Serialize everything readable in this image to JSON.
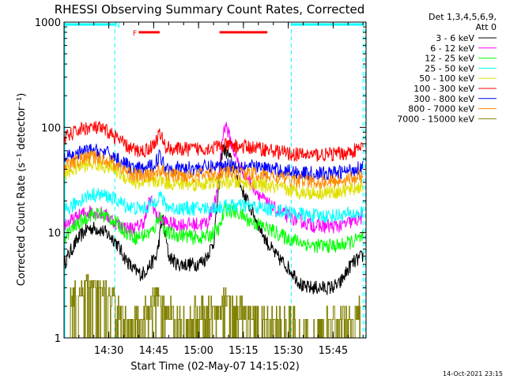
{
  "chart_data": {
    "type": "line",
    "title": "RHESSI Observing Summary Count Rates, Corrected",
    "xlabel": "Start Time (02-May-07 14:15:02)",
    "ylabel": "Corrected Count Rate (s⁻¹ detector⁻¹)",
    "ylim": [
      1,
      1000
    ],
    "yscale": "log",
    "xlim": [
      "14:15:02",
      "15:56:00"
    ],
    "x_ticks": [
      "14:30",
      "14:45",
      "15:00",
      "15:15",
      "15:30",
      "15:45"
    ],
    "y_ticks": [
      "1",
      "10",
      "100",
      "1000"
    ],
    "legend_header": [
      "Det 1,3,4,5,6,9,",
      "Att 0"
    ],
    "legend_position": "top-right",
    "timestamp": "14-Oct-2021 23:15",
    "annotations": [
      {
        "text": "N",
        "x": "14:32",
        "y": 950,
        "color": "#00ffff"
      },
      {
        "text": "F",
        "x": "14:38",
        "y": 800,
        "color": "#ff0000"
      }
    ],
    "night_intervals": [
      [
        "14:15",
        "14:32"
      ],
      [
        "15:31",
        "15:55"
      ]
    ],
    "flare_intervals": [
      [
        "14:40",
        "14:47"
      ],
      [
        "15:07",
        "15:23"
      ]
    ],
    "series": [
      {
        "name": "3 - 6 keV",
        "color": "#000000",
        "x": [
          "14:15",
          "14:17",
          "14:20",
          "14:23",
          "14:26",
          "14:29",
          "14:32",
          "14:35",
          "14:38",
          "14:41",
          "14:44",
          "14:46",
          "14:48",
          "14:50",
          "14:53",
          "14:56",
          "14:59",
          "15:02",
          "15:05",
          "15:07",
          "15:08",
          "15:10",
          "15:12",
          "15:14",
          "15:17",
          "15:20",
          "15:23",
          "15:26",
          "15:29",
          "15:32",
          "15:35",
          "15:38",
          "15:41",
          "15:44",
          "15:47",
          "15:49",
          "15:51",
          "15:53",
          "15:55"
        ],
        "y": [
          5,
          6.5,
          9,
          11,
          11,
          10,
          8.5,
          6,
          4.5,
          4,
          5,
          6,
          14,
          6,
          5,
          5,
          5,
          5.5,
          8,
          30,
          65,
          55,
          40,
          28,
          18,
          12,
          8,
          6,
          5,
          4,
          3,
          3,
          3,
          3,
          3.2,
          4,
          5,
          5.5,
          6
        ]
      },
      {
        "name": "6 - 12 keV",
        "color": "#ff00ff",
        "x": [
          "14:15",
          "14:18",
          "14:21",
          "14:24",
          "14:27",
          "14:30",
          "14:33",
          "14:36",
          "14:39",
          "14:42",
          "14:44",
          "14:46",
          "14:48",
          "14:51",
          "14:54",
          "14:57",
          "15:00",
          "15:03",
          "15:06",
          "15:08",
          "15:09",
          "15:11",
          "15:13",
          "15:16",
          "15:19",
          "15:22",
          "15:25",
          "15:28",
          "15:31",
          "15:34",
          "15:37",
          "15:40",
          "15:43",
          "15:46",
          "15:49",
          "15:52",
          "15:55"
        ],
        "y": [
          12,
          13,
          15,
          16,
          15.5,
          14,
          12,
          11,
          11,
          13,
          22,
          14,
          13,
          12,
          12,
          12,
          12,
          12.5,
          22,
          80,
          110,
          70,
          48,
          34,
          26,
          20,
          17,
          15,
          14,
          13,
          12,
          11.5,
          11.5,
          11.5,
          12,
          13,
          14
        ]
      },
      {
        "name": "12 - 25 keV",
        "color": "#00ff00",
        "x": [
          "14:15",
          "14:18",
          "14:21",
          "14:24",
          "14:27",
          "14:30",
          "14:33",
          "14:36",
          "14:39",
          "14:42",
          "14:45",
          "14:47",
          "14:49",
          "14:52",
          "14:55",
          "14:58",
          "15:01",
          "15:04",
          "15:07",
          "15:09",
          "15:11",
          "15:14",
          "15:17",
          "15:20",
          "15:23",
          "15:26",
          "15:29",
          "15:32",
          "15:35",
          "15:38",
          "15:41",
          "15:44",
          "15:47",
          "15:50",
          "15:53",
          "15:55"
        ],
        "y": [
          9,
          11,
          13,
          15,
          15,
          14,
          12,
          10,
          9,
          9.5,
          10.5,
          15,
          10,
          9.5,
          9.5,
          9,
          9,
          9.5,
          11,
          17,
          16,
          15,
          13,
          12,
          11,
          10,
          9,
          8.5,
          8,
          7.5,
          7.5,
          7.5,
          7.5,
          8,
          8.5,
          9
        ]
      },
      {
        "name": "25 - 50 keV",
        "color": "#00ffff",
        "x": [
          "14:15",
          "14:18",
          "14:21",
          "14:24",
          "14:27",
          "14:30",
          "14:33",
          "14:36",
          "14:39",
          "14:42",
          "14:45",
          "14:47",
          "14:49",
          "14:52",
          "14:55",
          "14:58",
          "15:01",
          "15:04",
          "15:07",
          "15:10",
          "15:13",
          "15:16",
          "15:19",
          "15:22",
          "15:25",
          "15:28",
          "15:31",
          "15:34",
          "15:37",
          "15:40",
          "15:43",
          "15:46",
          "15:49",
          "15:52",
          "15:55"
        ],
        "y": [
          16,
          18,
          21,
          23,
          23,
          22,
          20,
          18,
          17,
          17,
          19,
          23,
          18,
          17,
          17,
          17,
          17,
          17,
          17.5,
          18,
          18,
          18,
          17.5,
          17,
          16.5,
          16,
          15.5,
          15,
          14.5,
          14.5,
          14.5,
          14.5,
          14.8,
          15,
          15.5
        ]
      },
      {
        "name": "50 - 100 keV",
        "color": "#e0e000",
        "x": [
          "14:15",
          "14:18",
          "14:21",
          "14:24",
          "14:27",
          "14:30",
          "14:33",
          "14:36",
          "14:39",
          "14:42",
          "14:45",
          "14:47",
          "14:49",
          "14:52",
          "14:55",
          "14:58",
          "15:01",
          "15:04",
          "15:07",
          "15:10",
          "15:13",
          "15:16",
          "15:19",
          "15:22",
          "15:25",
          "15:28",
          "15:31",
          "15:34",
          "15:37",
          "15:40",
          "15:43",
          "15:46",
          "15:49",
          "15:52",
          "15:55"
        ],
        "y": [
          36,
          40,
          43,
          45,
          44,
          42,
          38,
          33,
          30,
          29,
          30,
          32,
          30,
          29,
          29,
          29,
          29,
          29.5,
          30,
          30.5,
          30,
          29.5,
          29,
          28,
          27,
          26,
          25,
          24.5,
          24,
          24,
          24,
          24.5,
          25,
          26,
          28
        ]
      },
      {
        "name": "100 - 300 keV",
        "color": "#ff0000",
        "x": [
          "14:15",
          "14:18",
          "14:21",
          "14:24",
          "14:27",
          "14:30",
          "14:33",
          "14:36",
          "14:39",
          "14:42",
          "14:45",
          "14:47",
          "14:49",
          "14:52",
          "14:55",
          "14:58",
          "15:01",
          "15:04",
          "15:07",
          "15:10",
          "15:13",
          "15:16",
          "15:19",
          "15:22",
          "15:25",
          "15:28",
          "15:31",
          "15:34",
          "15:37",
          "15:40",
          "15:43",
          "15:46",
          "15:49",
          "15:52",
          "15:55"
        ],
        "y": [
          78,
          88,
          97,
          100,
          97,
          90,
          78,
          66,
          60,
          60,
          68,
          88,
          65,
          62,
          62,
          62,
          63,
          64,
          66,
          67,
          66,
          65,
          64,
          62,
          60,
          58,
          56,
          55,
          55,
          55,
          55,
          56,
          57,
          60,
          65
        ]
      },
      {
        "name": "300 - 800 keV",
        "color": "#0000ff",
        "x": [
          "14:15",
          "14:18",
          "14:21",
          "14:24",
          "14:27",
          "14:30",
          "14:33",
          "14:36",
          "14:39",
          "14:42",
          "14:45",
          "14:47",
          "14:49",
          "14:52",
          "14:55",
          "14:58",
          "15:01",
          "15:04",
          "15:07",
          "15:10",
          "15:13",
          "15:16",
          "15:19",
          "15:22",
          "15:25",
          "15:28",
          "15:31",
          "15:34",
          "15:37",
          "15:40",
          "15:43",
          "15:46",
          "15:49",
          "15:52",
          "15:55"
        ],
        "y": [
          50,
          54,
          58,
          60,
          59,
          56,
          50,
          44,
          40,
          40,
          44,
          54,
          42,
          41,
          41,
          41,
          41.5,
          42,
          43,
          44,
          43.5,
          43,
          42,
          41,
          40,
          39,
          38,
          37,
          36.5,
          36.5,
          36.5,
          37,
          38,
          40,
          43
        ]
      },
      {
        "name": "800 - 7000 keV",
        "color": "#ff8c00",
        "x": [
          "14:15",
          "14:18",
          "14:21",
          "14:24",
          "14:27",
          "14:30",
          "14:33",
          "14:36",
          "14:39",
          "14:42",
          "14:45",
          "14:47",
          "14:49",
          "14:52",
          "14:55",
          "14:58",
          "15:01",
          "15:04",
          "15:07",
          "15:10",
          "15:13",
          "15:16",
          "15:19",
          "15:22",
          "15:25",
          "15:28",
          "15:31",
          "15:34",
          "15:37",
          "15:40",
          "15:43",
          "15:46",
          "15:49",
          "15:52",
          "15:55"
        ],
        "y": [
          42,
          46,
          50,
          52,
          51,
          48,
          43,
          38,
          35,
          34.5,
          36,
          40,
          36,
          35,
          35,
          35,
          35.5,
          36,
          37,
          37.5,
          37,
          36.5,
          36,
          35,
          34,
          33,
          32,
          31,
          30.5,
          30.5,
          30.5,
          31,
          32,
          33,
          35
        ]
      },
      {
        "name": "7000 - 15000 keV",
        "color": "#808000",
        "style": "step-noise",
        "x": [
          "14:17",
          "14:20",
          "14:23",
          "14:26",
          "14:29",
          "14:31",
          "14:33",
          "14:38",
          "14:43",
          "14:46",
          "14:50",
          "14:55",
          "15:00",
          "15:05",
          "15:10",
          "15:15",
          "15:20",
          "15:25",
          "15:30",
          "15:35",
          "15:40",
          "15:45",
          "15:50",
          "15:54"
        ],
        "y": [
          2.5,
          3,
          3.5,
          3.5,
          3,
          2.5,
          2,
          1.5,
          2,
          2.5,
          2,
          1.5,
          2,
          2,
          2.5,
          2,
          1.5,
          1.5,
          1.5,
          1,
          1,
          1.5,
          1.5,
          2
        ]
      }
    ]
  }
}
